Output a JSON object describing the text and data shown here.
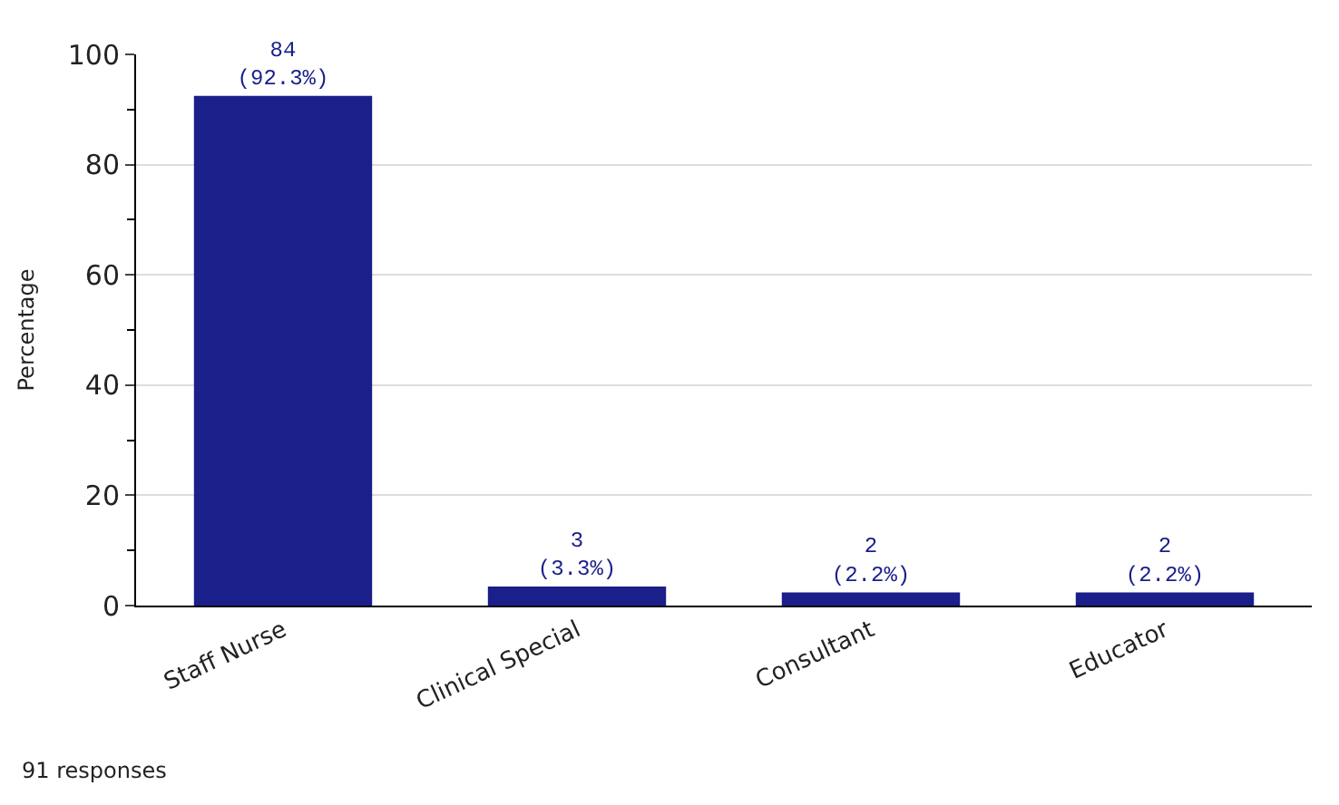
{
  "chart_data": {
    "type": "bar",
    "ylabel": "Percentage",
    "categories": [
      "Staff Nurse",
      "Clinical Special",
      "Consultant",
      "Educator"
    ],
    "values": [
      92.3,
      3.3,
      2.2,
      2.2
    ],
    "value_labels": [
      "84\n(92.3%)",
      "3\n(3.3%)",
      "2\n(2.2%)",
      "2\n(2.2%)"
    ],
    "color": "#1a1f8a",
    "ylim": [
      0,
      100
    ],
    "yticks": [
      0,
      20,
      40,
      60,
      80,
      100
    ],
    "grid": "y",
    "annotations": [
      "91 responses"
    ]
  }
}
